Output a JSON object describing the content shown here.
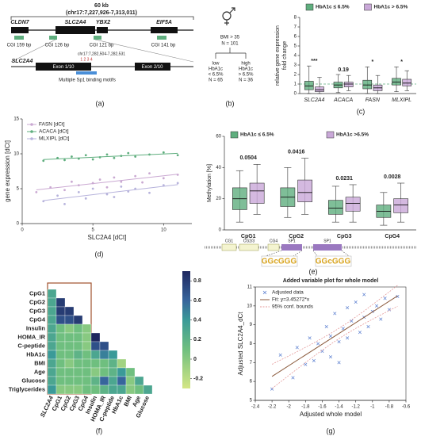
{
  "panel_labels": [
    "(a)",
    "(b)",
    "(c)",
    "(d)",
    "(e)",
    "(f)",
    "(g)"
  ],
  "diagram_a": {
    "scale": "60 kb",
    "region": "(chr17:7,227,926-7,313,011)",
    "genes": [
      "CLDN7",
      "SLC2A4",
      "YBX2",
      "EIF5A"
    ],
    "cgis": [
      "CGI 159 bp",
      "CGI 126 bp",
      "CGI 121 bp",
      "CGI 141 bp"
    ],
    "zoom_region": "chr17:7,282,504-7,282,531",
    "zoom_gene": "SLC2A4",
    "exons": [
      "Exon 1/10",
      "Exon 2/10"
    ],
    "cpg_sites": "1 2 3 4",
    "motif_label": "Multiple Sp1 binding motifs"
  },
  "diagram_b": {
    "cohort": [
      "BMI > 35",
      "N = 101"
    ],
    "low": [
      "low",
      "HbA1c",
      "< 6.5%",
      "N = 65"
    ],
    "high": [
      "high",
      "HbA1c",
      "> 6.5%",
      "N = 36"
    ]
  },
  "diagram_e": {
    "sites": [
      "CG1",
      "CG2/3",
      "CG4",
      "SP1",
      "SP1"
    ],
    "logos": [
      "GGcGGG",
      "GGcGGG"
    ]
  },
  "chart_data": [
    {
      "type": "box",
      "y_label": [
        "relative gene expression",
        "fold change"
      ],
      "categories": [
        "SLC2A4",
        "ACACA",
        "FASN",
        "MLXIPL"
      ],
      "ylim": [
        0,
        8
      ],
      "yticks": [
        0,
        1,
        2,
        3,
        4,
        5,
        6,
        7,
        8
      ],
      "reference_line": 1,
      "annotations": [
        "***",
        "0.19",
        "*",
        "*"
      ],
      "series": [
        {
          "name": "HbA1c ≤ 6.5%",
          "color": "#5fae7e",
          "boxes": [
            {
              "min": 0,
              "q1": 0.4,
              "median": 0.8,
              "q3": 1.3,
              "max": 2.9
            },
            {
              "min": 0.1,
              "q1": 0.6,
              "median": 0.9,
              "q3": 1.2,
              "max": 2
            },
            {
              "min": 0,
              "q1": 0.5,
              "median": 0.9,
              "q3": 1.4,
              "max": 2.8
            },
            {
              "min": 0.2,
              "q1": 0.9,
              "median": 1.2,
              "q3": 1.6,
              "max": 2.8
            }
          ]
        },
        {
          "name": "HbA1c > 6.5%",
          "color": "#c9a8d8",
          "boxes": [
            {
              "min": 0,
              "q1": 0.2,
              "median": 0.4,
              "q3": 0.7,
              "max": 1.7
            },
            {
              "min": 0.3,
              "q1": 0.7,
              "median": 1,
              "q3": 1.2,
              "max": 1.9
            },
            {
              "min": 0,
              "q1": 0.3,
              "median": 0.6,
              "q3": 0.9,
              "max": 1.9
            },
            {
              "min": 0.3,
              "q1": 0.8,
              "median": 1.1,
              "q3": 1.5,
              "max": 2.4
            }
          ]
        }
      ]
    },
    {
      "type": "scatter",
      "x_label": "SLC2A4 [dCt]",
      "y_label": "gene expression [dCt]",
      "xlim": [
        0,
        12
      ],
      "xticks": [
        0,
        5,
        10
      ],
      "ylim": [
        0,
        15
      ],
      "yticks": [
        0,
        5,
        10,
        15
      ],
      "trendline": true,
      "series": [
        {
          "name": "FASN [dCt]",
          "color": "#caa9d2",
          "marker": "dot",
          "x": [
            1,
            2,
            3,
            3.5,
            4,
            5,
            5.5,
            6,
            6.5,
            7,
            8,
            8.5,
            9,
            10,
            11
          ],
          "y": [
            4.5,
            5.2,
            4.8,
            6,
            5.5,
            5.8,
            6.3,
            5.2,
            6.6,
            6,
            6.8,
            5.9,
            7.2,
            6.5,
            7
          ]
        },
        {
          "name": "ACACA [dCt]",
          "color": "#5fae7e",
          "marker": "dot",
          "x": [
            1.5,
            2.5,
            3,
            3.5,
            4,
            4.5,
            5,
            5.5,
            6,
            6.5,
            7,
            7.5,
            8,
            9,
            10,
            11
          ],
          "y": [
            9,
            9.4,
            9.1,
            9.6,
            9.3,
            9.8,
            9.2,
            9.5,
            9.9,
            9.4,
            9.7,
            10.1,
            9.6,
            9.9,
            10.2,
            9.8
          ]
        },
        {
          "name": "MLXIPL [dCt]",
          "color": "#b7b3dc",
          "marker": "dot",
          "x": [
            1.5,
            2.5,
            3,
            4,
            4.5,
            5,
            6,
            6.5,
            7,
            7.5,
            8,
            9,
            10,
            11
          ],
          "y": [
            3.2,
            4,
            2.8,
            4.5,
            3.6,
            5,
            4.2,
            3.8,
            5.3,
            4.6,
            5,
            4.4,
            5.5,
            5.8
          ]
        }
      ]
    },
    {
      "type": "box",
      "y_label": [
        "Methylation [%]"
      ],
      "categories": [
        "CpG1",
        "CpG2",
        "CpG3",
        "CpG4"
      ],
      "ylim": [
        0,
        60
      ],
      "yticks": [
        0,
        20,
        40,
        60
      ],
      "annotations": [
        "0.0504",
        "0.0416",
        "0.0231",
        "0.0028"
      ],
      "series": [
        {
          "name": "HbA1c ≤ 6.5%",
          "color": "#5fae7e",
          "boxes": [
            {
              "min": 5,
              "q1": 13,
              "median": 20,
              "q3": 27,
              "max": 38
            },
            {
              "min": 8,
              "q1": 15,
              "median": 21,
              "q3": 27,
              "max": 40
            },
            {
              "min": 5,
              "q1": 10,
              "median": 14,
              "q3": 19,
              "max": 28
            },
            {
              "min": 3,
              "q1": 8,
              "median": 12,
              "q3": 16,
              "max": 24
            }
          ]
        },
        {
          "name": "HbA1c >6.5%",
          "color": "#c9a8d8",
          "boxes": [
            {
              "min": 10,
              "q1": 17,
              "median": 25,
              "q3": 30,
              "max": 42
            },
            {
              "min": 10,
              "q1": 18,
              "median": 24,
              "q3": 32,
              "max": 46
            },
            {
              "min": 5,
              "q1": 12,
              "median": 17,
              "q3": 21,
              "max": 29
            },
            {
              "min": 5,
              "q1": 11,
              "median": 16,
              "q3": 20,
              "max": 30
            }
          ]
        }
      ]
    },
    {
      "type": "heatmap",
      "row_labels": [
        "CpG1",
        "CpG2",
        "CpG3",
        "CpG4",
        "Insulin",
        "HOMA_IR",
        "C-peptide",
        "HbA1c",
        "BMI",
        "Age",
        "Glucose",
        "Triglycerides"
      ],
      "col_labels": [
        "SLC2A4",
        "CpG1",
        "CpG2",
        "CpG3",
        "CpG4",
        "Insulin",
        "HOMA_IR",
        "C-peptide",
        "HbA1c",
        "BMI",
        "Age",
        "Glucose"
      ],
      "values": [
        [
          0.3
        ],
        [
          0.3,
          0.8
        ],
        [
          0.3,
          0.8,
          0.8
        ],
        [
          0.3,
          0.7,
          0.7,
          0.8
        ],
        [
          0.3,
          0.1,
          0,
          0.1,
          0
        ],
        [
          0.3,
          0.1,
          0.1,
          0.1,
          0,
          0.9
        ],
        [
          0.3,
          0.1,
          0.1,
          0.1,
          0,
          0.7,
          0.7
        ],
        [
          0.4,
          0.1,
          0.1,
          0.2,
          0.1,
          0.3,
          0.5,
          0.4
        ],
        [
          0.3,
          0.1,
          0,
          0.1,
          0.1,
          0.1,
          0.1,
          0.2,
          -0.1
        ],
        [
          0.3,
          0.1,
          0.1,
          0.1,
          0.1,
          0,
          0.1,
          0.2,
          0.4,
          0.1
        ],
        [
          0.3,
          0.1,
          0.1,
          0.1,
          0.1,
          0.2,
          0.6,
          0.3,
          0.6,
          0,
          0.3
        ],
        [
          0.4,
          0,
          0,
          0,
          0.1,
          0.1,
          0.2,
          0.3,
          0.3,
          0,
          0.1,
          0.3
        ]
      ],
      "clim": [
        -0.3,
        0.9
      ],
      "cticks": [
        0.8,
        0.6,
        0.4,
        0.2,
        0,
        -0.2
      ],
      "colorscale": [
        [
          -0.3,
          "#d4e685"
        ],
        [
          0.1,
          "#6fbf7f"
        ],
        [
          0.4,
          "#3b9a98"
        ],
        [
          0.6,
          "#37659c"
        ],
        [
          0.9,
          "#1f275f"
        ]
      ]
    },
    {
      "type": "scatter",
      "title": "Added variable plot for whole model",
      "x_label": "Adjusted whole model",
      "y_label": "Adjusted SLC2A4_dCt",
      "xlim": [
        -2.4,
        -0.6
      ],
      "xticks": [
        -2.4,
        -2.2,
        -2,
        -1.8,
        -1.6,
        -1.4,
        -1.2,
        -1,
        -0.8,
        -0.6
      ],
      "ylim": [
        5,
        11
      ],
      "yticks": [
        5,
        6,
        7,
        8,
        9,
        10,
        11
      ],
      "frame": true,
      "fit_legend": "Fit: y=3.45272*x",
      "fit_color": "#8b5a3c",
      "bounds_legend": "95% conf. bounds",
      "bounds_color": "#e59a9a",
      "series": [
        {
          "name": "Adjusted data",
          "color": "#5b7fd0",
          "marker": "x",
          "x": [
            -2.2,
            -2.1,
            -1.95,
            -1.9,
            -1.8,
            -1.75,
            -1.7,
            -1.65,
            -1.6,
            -1.55,
            -1.5,
            -1.5,
            -1.45,
            -1.4,
            -1.4,
            -1.35,
            -1.3,
            -1.3,
            -1.25,
            -1.2,
            -1.15,
            -1.1,
            -1.1,
            -1.05,
            -1,
            -0.95,
            -0.9,
            -0.85,
            -0.8,
            -0.7
          ],
          "y": [
            5.6,
            7.4,
            6.2,
            7.8,
            6.9,
            8.3,
            7.1,
            8,
            7.6,
            8.9,
            7.3,
            8.4,
            9.6,
            8.1,
            7,
            8.8,
            9.9,
            8.3,
            9.2,
            10.2,
            8.6,
            9.4,
            10.6,
            8.9,
            9.7,
            10,
            9.3,
            10.4,
            9.8,
            10.5
          ]
        }
      ]
    }
  ]
}
